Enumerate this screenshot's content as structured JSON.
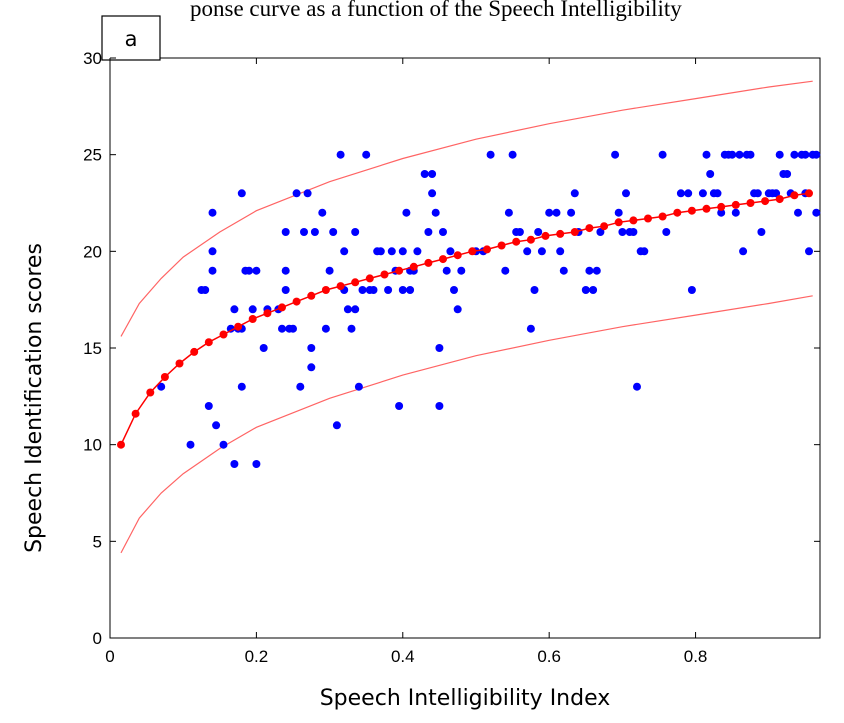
{
  "header_fragment": "ponse curve as a function of the Speech Intelligibility",
  "chart_data": {
    "type": "scatter",
    "panel_label": "a",
    "xlabel": "Speech Intelligibility Index",
    "ylabel": "Speech Identification scores",
    "xlim": [
      0,
      0.97
    ],
    "ylim": [
      0,
      30
    ],
    "xticks": [
      0,
      0.2,
      0.4,
      0.6,
      0.8
    ],
    "xtick_labels": [
      "0",
      "0.2",
      "0.4",
      "0.6",
      "0.8"
    ],
    "yticks": [
      0,
      5,
      10,
      15,
      20,
      25,
      30
    ],
    "ytick_labels": [
      "0",
      "5",
      "10",
      "15",
      "20",
      "25",
      "30"
    ],
    "grid": false,
    "legend": "none",
    "colors": {
      "scatter": "#0000ff",
      "fit": "#ff0000",
      "bounds": "#ff6464"
    },
    "scatter_points": [
      [
        0.07,
        13
      ],
      [
        0.11,
        10
      ],
      [
        0.125,
        18
      ],
      [
        0.13,
        18
      ],
      [
        0.135,
        12
      ],
      [
        0.14,
        22
      ],
      [
        0.14,
        20
      ],
      [
        0.14,
        19
      ],
      [
        0.145,
        11
      ],
      [
        0.155,
        10
      ],
      [
        0.165,
        16
      ],
      [
        0.17,
        9
      ],
      [
        0.17,
        17
      ],
      [
        0.175,
        16
      ],
      [
        0.18,
        23
      ],
      [
        0.18,
        16
      ],
      [
        0.18,
        13
      ],
      [
        0.185,
        19
      ],
      [
        0.19,
        19
      ],
      [
        0.195,
        17
      ],
      [
        0.2,
        19
      ],
      [
        0.2,
        9
      ],
      [
        0.21,
        15
      ],
      [
        0.215,
        17
      ],
      [
        0.23,
        17
      ],
      [
        0.235,
        16
      ],
      [
        0.24,
        21
      ],
      [
        0.24,
        19
      ],
      [
        0.24,
        18
      ],
      [
        0.245,
        16
      ],
      [
        0.25,
        16
      ],
      [
        0.255,
        23
      ],
      [
        0.26,
        13
      ],
      [
        0.265,
        21
      ],
      [
        0.27,
        23
      ],
      [
        0.275,
        15
      ],
      [
        0.275,
        14
      ],
      [
        0.28,
        21
      ],
      [
        0.29,
        22
      ],
      [
        0.295,
        16
      ],
      [
        0.3,
        19
      ],
      [
        0.305,
        21
      ],
      [
        0.31,
        11
      ],
      [
        0.315,
        25
      ],
      [
        0.32,
        18
      ],
      [
        0.32,
        20
      ],
      [
        0.325,
        17
      ],
      [
        0.33,
        16
      ],
      [
        0.335,
        21
      ],
      [
        0.335,
        17
      ],
      [
        0.34,
        13
      ],
      [
        0.345,
        18
      ],
      [
        0.35,
        25
      ],
      [
        0.355,
        18
      ],
      [
        0.36,
        18
      ],
      [
        0.365,
        20
      ],
      [
        0.37,
        20
      ],
      [
        0.38,
        18
      ],
      [
        0.385,
        20
      ],
      [
        0.39,
        19
      ],
      [
        0.395,
        12
      ],
      [
        0.4,
        18
      ],
      [
        0.4,
        20
      ],
      [
        0.405,
        22
      ],
      [
        0.41,
        18
      ],
      [
        0.41,
        19
      ],
      [
        0.415,
        19
      ],
      [
        0.42,
        20
      ],
      [
        0.43,
        24
      ],
      [
        0.435,
        21
      ],
      [
        0.44,
        23
      ],
      [
        0.44,
        24
      ],
      [
        0.445,
        22
      ],
      [
        0.45,
        15
      ],
      [
        0.45,
        12
      ],
      [
        0.455,
        21
      ],
      [
        0.46,
        19
      ],
      [
        0.465,
        20
      ],
      [
        0.47,
        18
      ],
      [
        0.475,
        17
      ],
      [
        0.48,
        19
      ],
      [
        0.5,
        20
      ],
      [
        0.51,
        20
      ],
      [
        0.52,
        25
      ],
      [
        0.54,
        19
      ],
      [
        0.545,
        22
      ],
      [
        0.55,
        25
      ],
      [
        0.555,
        21
      ],
      [
        0.56,
        21
      ],
      [
        0.57,
        20
      ],
      [
        0.575,
        16
      ],
      [
        0.58,
        18
      ],
      [
        0.585,
        21
      ],
      [
        0.59,
        20
      ],
      [
        0.6,
        22
      ],
      [
        0.61,
        22
      ],
      [
        0.615,
        20
      ],
      [
        0.62,
        19
      ],
      [
        0.63,
        22
      ],
      [
        0.635,
        23
      ],
      [
        0.64,
        21
      ],
      [
        0.65,
        18
      ],
      [
        0.655,
        19
      ],
      [
        0.66,
        18
      ],
      [
        0.665,
        19
      ],
      [
        0.67,
        21
      ],
      [
        0.69,
        25
      ],
      [
        0.695,
        22
      ],
      [
        0.7,
        21
      ],
      [
        0.705,
        23
      ],
      [
        0.71,
        21
      ],
      [
        0.715,
        21
      ],
      [
        0.72,
        13
      ],
      [
        0.725,
        20
      ],
      [
        0.73,
        20
      ],
      [
        0.755,
        25
      ],
      [
        0.76,
        21
      ],
      [
        0.78,
        23
      ],
      [
        0.79,
        23
      ],
      [
        0.795,
        18
      ],
      [
        0.81,
        23
      ],
      [
        0.815,
        25
      ],
      [
        0.82,
        24
      ],
      [
        0.825,
        23
      ],
      [
        0.83,
        23
      ],
      [
        0.835,
        22
      ],
      [
        0.84,
        25
      ],
      [
        0.845,
        25
      ],
      [
        0.85,
        25
      ],
      [
        0.855,
        22
      ],
      [
        0.86,
        25
      ],
      [
        0.865,
        20
      ],
      [
        0.87,
        25
      ],
      [
        0.875,
        25
      ],
      [
        0.88,
        23
      ],
      [
        0.885,
        23
      ],
      [
        0.89,
        21
      ],
      [
        0.9,
        23
      ],
      [
        0.905,
        23
      ],
      [
        0.91,
        23
      ],
      [
        0.915,
        25
      ],
      [
        0.92,
        24
      ],
      [
        0.925,
        24
      ],
      [
        0.93,
        23
      ],
      [
        0.935,
        25
      ],
      [
        0.94,
        22
      ],
      [
        0.945,
        25
      ],
      [
        0.95,
        23
      ],
      [
        0.95,
        25
      ],
      [
        0.955,
        20
      ],
      [
        0.96,
        25
      ],
      [
        0.965,
        25
      ],
      [
        0.965,
        22
      ]
    ],
    "fit_curve": {
      "x": [
        0.015,
        0.035,
        0.055,
        0.075,
        0.095,
        0.115,
        0.135,
        0.155,
        0.175,
        0.195,
        0.215,
        0.235,
        0.255,
        0.275,
        0.295,
        0.315,
        0.335,
        0.355,
        0.375,
        0.395,
        0.415,
        0.435,
        0.455,
        0.475,
        0.495,
        0.515,
        0.535,
        0.555,
        0.575,
        0.595,
        0.615,
        0.635,
        0.655,
        0.675,
        0.695,
        0.715,
        0.735,
        0.755,
        0.775,
        0.795,
        0.815,
        0.835,
        0.855,
        0.875,
        0.895,
        0.915,
        0.935,
        0.955
      ],
      "y": [
        10.0,
        11.6,
        12.7,
        13.5,
        14.2,
        14.8,
        15.3,
        15.7,
        16.1,
        16.5,
        16.8,
        17.1,
        17.4,
        17.7,
        18.0,
        18.2,
        18.4,
        18.6,
        18.8,
        19.0,
        19.2,
        19.4,
        19.6,
        19.8,
        20.0,
        20.1,
        20.3,
        20.5,
        20.6,
        20.8,
        20.9,
        21.0,
        21.2,
        21.3,
        21.5,
        21.6,
        21.7,
        21.8,
        22.0,
        22.1,
        22.2,
        22.3,
        22.4,
        22.5,
        22.6,
        22.7,
        22.9,
        23.0
      ]
    },
    "upper_bound": {
      "x": [
        0.015,
        0.04,
        0.07,
        0.1,
        0.15,
        0.2,
        0.3,
        0.4,
        0.5,
        0.6,
        0.7,
        0.8,
        0.9,
        0.96
      ],
      "y": [
        15.6,
        17.3,
        18.6,
        19.7,
        21.0,
        22.1,
        23.6,
        24.8,
        25.8,
        26.6,
        27.3,
        27.9,
        28.5,
        28.8
      ]
    },
    "lower_bound": {
      "x": [
        0.015,
        0.04,
        0.07,
        0.1,
        0.15,
        0.2,
        0.3,
        0.4,
        0.5,
        0.6,
        0.7,
        0.8,
        0.9,
        0.96
      ],
      "y": [
        4.4,
        6.2,
        7.5,
        8.5,
        9.8,
        10.9,
        12.4,
        13.6,
        14.6,
        15.4,
        16.1,
        16.7,
        17.3,
        17.7
      ]
    }
  }
}
